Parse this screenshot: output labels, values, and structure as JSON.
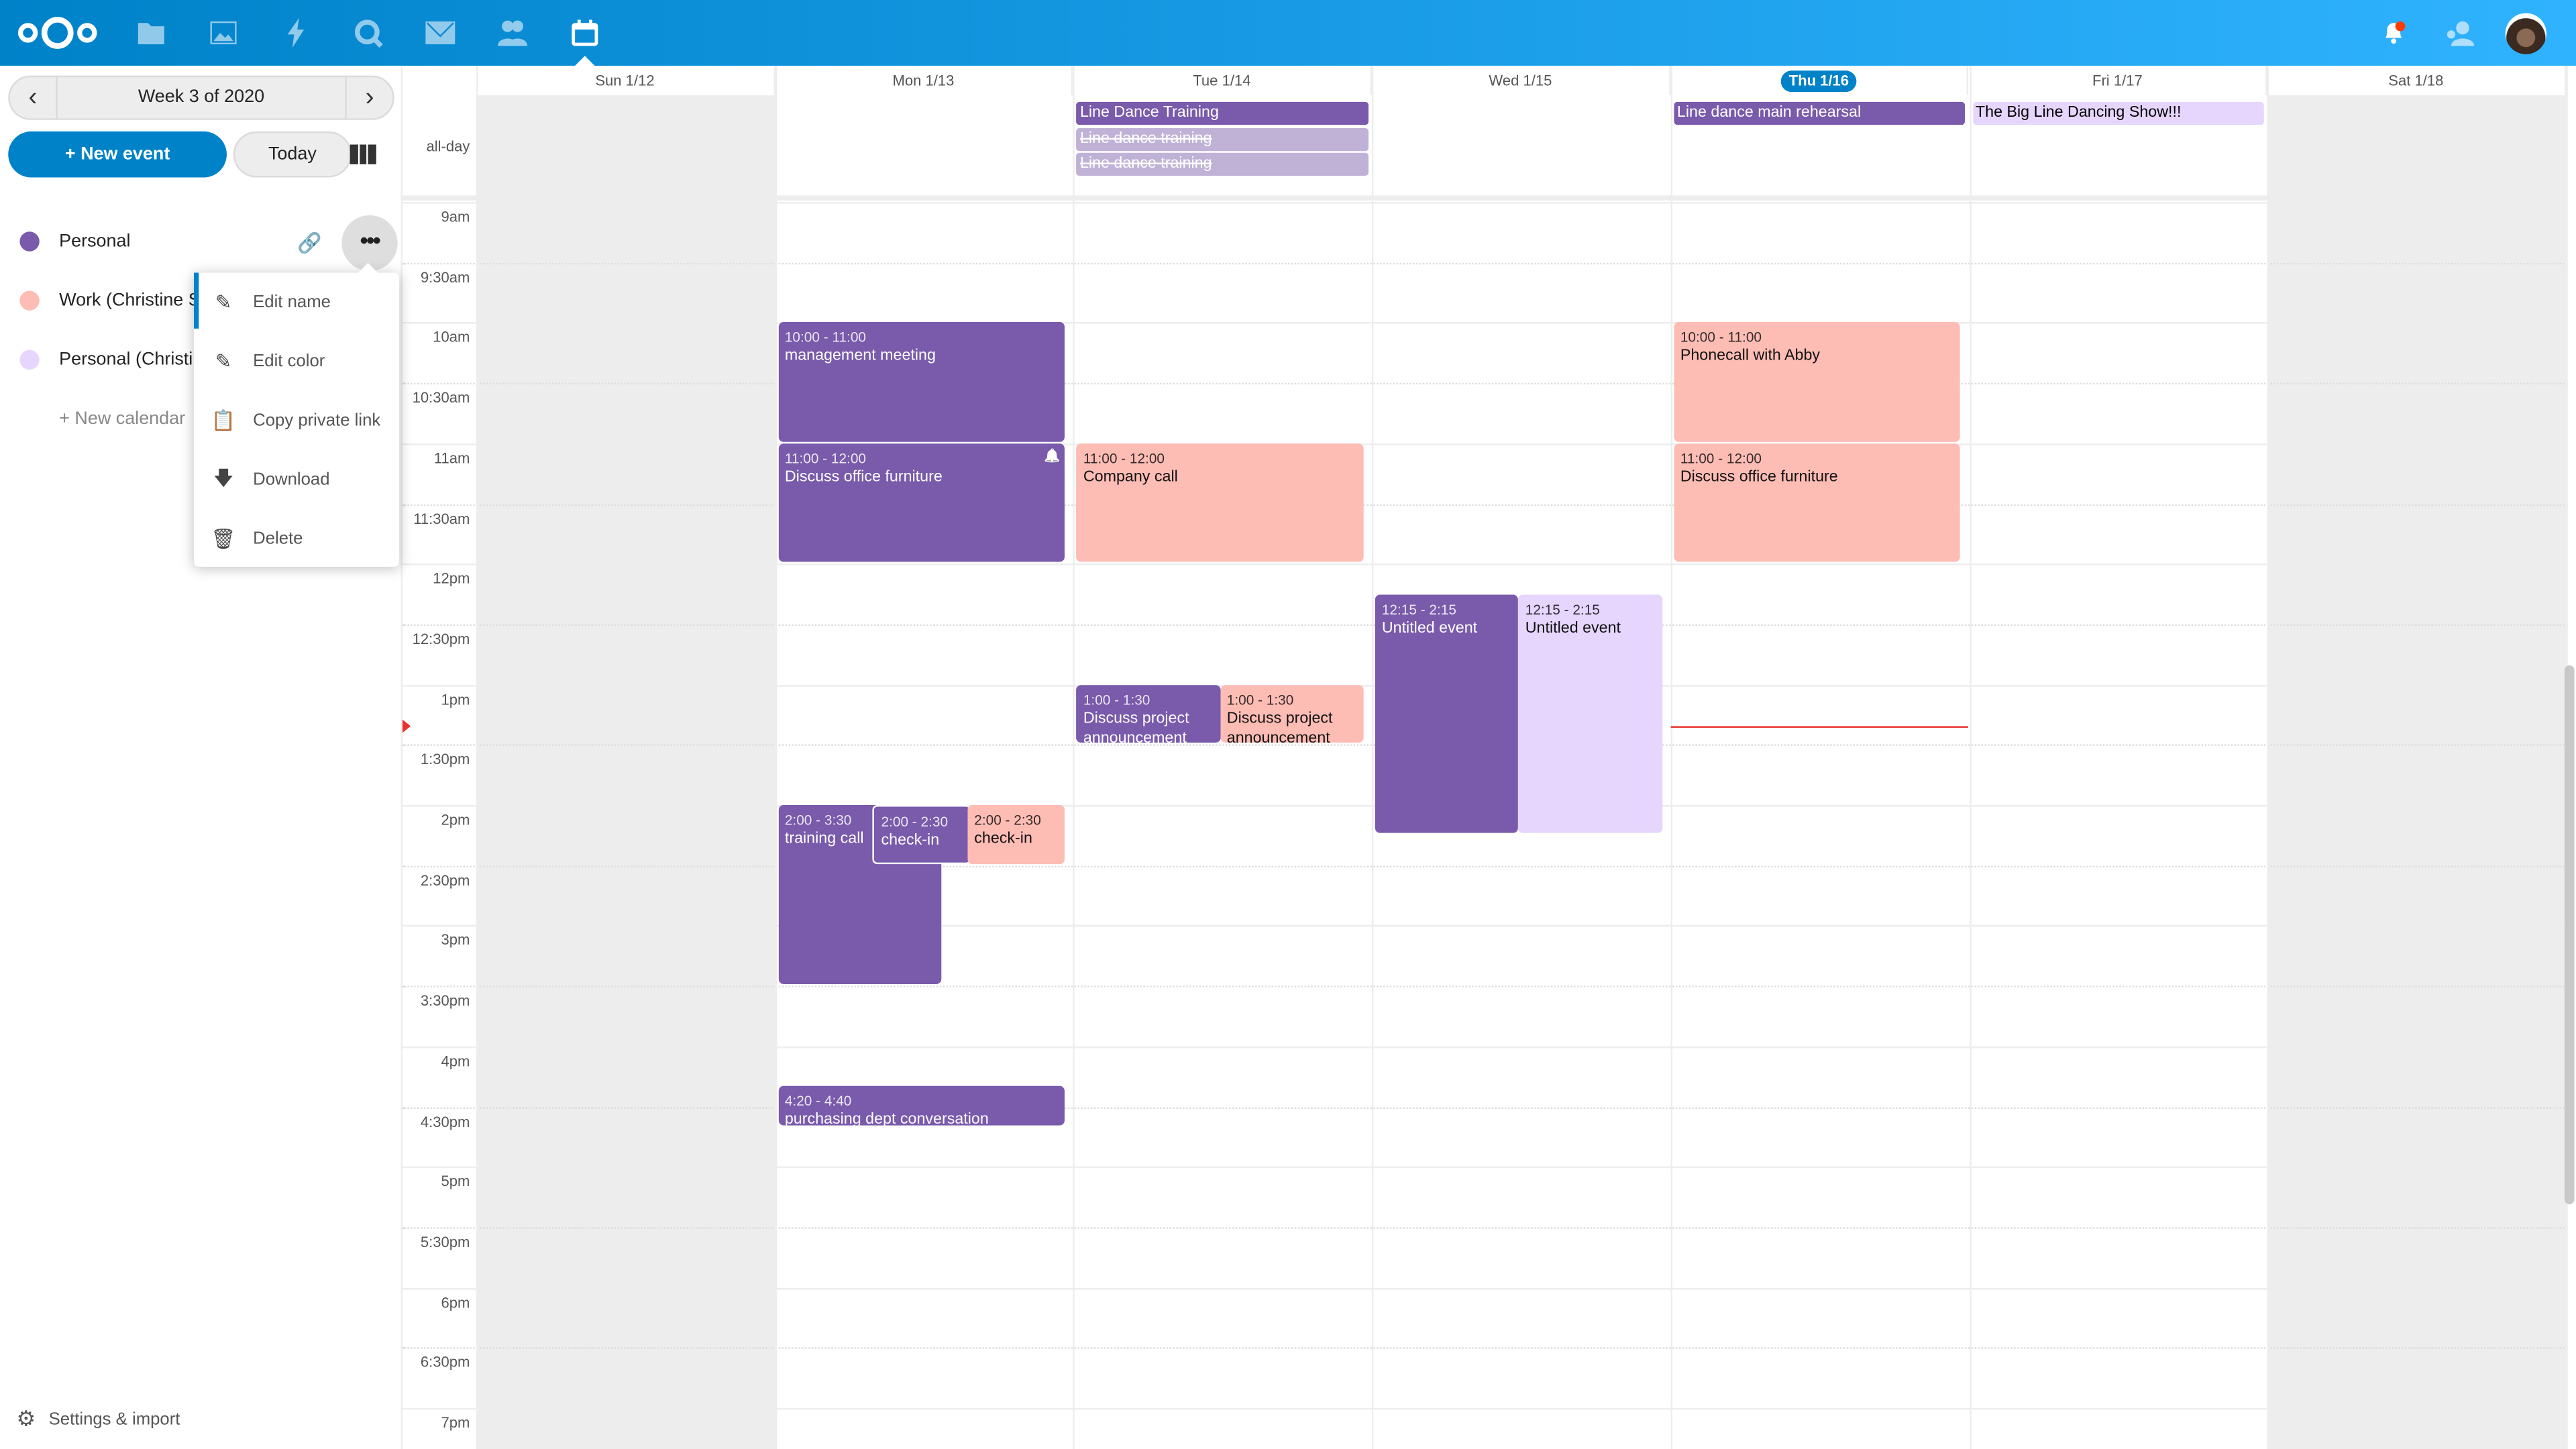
{
  "header": {
    "apps": [
      "files-icon",
      "photos-icon",
      "activity-icon",
      "talk-icon",
      "mail-icon",
      "contacts-icon",
      "calendar-icon"
    ],
    "right": [
      "notifications-icon",
      "contacts-menu-icon",
      "user-avatar"
    ],
    "notification_color": "#ff3b00"
  },
  "sidebar": {
    "week_label": "Week 3 of 2020",
    "new_event": "+ New event",
    "today": "Today",
    "calendars": [
      {
        "name": "Personal",
        "color": "#795aab"
      },
      {
        "name": "Work (Christine Schott)",
        "color": "#fdbcb4"
      },
      {
        "name": "Personal (Christine Schott)",
        "color": "#e6d6fe"
      }
    ],
    "new_calendar": "+ New calendar",
    "menu": [
      {
        "label": "Edit name",
        "icon": "pencil-icon"
      },
      {
        "label": "Edit color",
        "icon": "pencil-icon"
      },
      {
        "label": "Copy private link",
        "icon": "clipboard-icon"
      },
      {
        "label": "Download",
        "icon": "download-icon"
      },
      {
        "label": "Delete",
        "icon": "trash-icon"
      }
    ],
    "settings": "Settings & import"
  },
  "calendar": {
    "days": [
      "Sun 1/12",
      "Mon 1/13",
      "Tue 1/14",
      "Wed 1/15",
      "Thu 1/16",
      "Fri 1/17",
      "Sat 1/18"
    ],
    "today_index": 4,
    "allday_label": "all-day",
    "times": [
      "9am",
      "9:30am",
      "10am",
      "10:30am",
      "11am",
      "11:30am",
      "12pm",
      "12:30pm",
      "1pm",
      "1:30pm",
      "2pm",
      "2:30pm",
      "3pm",
      "3:30pm",
      "4pm",
      "4:30pm",
      "5pm",
      "5:30pm",
      "6pm",
      "6:30pm",
      "7pm"
    ],
    "now": "13:21",
    "colors": {
      "purple": "#795aab",
      "pink": "#fdbcb4",
      "lavender": "#e6d6fe",
      "faded": "#c0b2d6"
    },
    "allday": [
      {
        "day": 2,
        "title": "Line Dance Training",
        "color": "purple"
      },
      {
        "day": 2,
        "title": "Line dance training",
        "color": "faded",
        "declined": true
      },
      {
        "day": 2,
        "title": "Line dance training",
        "color": "faded",
        "declined": true
      },
      {
        "day": 4,
        "title": "Line dance main rehearsal",
        "color": "purple"
      },
      {
        "day": 5,
        "title": "The Big Line Dancing Show!!!",
        "color": "lavender"
      }
    ],
    "events": [
      {
        "day": 1,
        "start": "10:00",
        "end": "11:00",
        "time": "10:00 - 11:00",
        "title": "management meeting",
        "color": "purple"
      },
      {
        "day": 1,
        "start": "11:00",
        "end": "12:00",
        "time": "11:00 - 12:00",
        "title": "Discuss office furniture",
        "color": "purple",
        "alarm": true
      },
      {
        "day": 1,
        "start": "14:00",
        "end": "15:30",
        "time": "2:00 - 3:30",
        "title": "training call",
        "color": "purple"
      },
      {
        "day": 1,
        "start": "14:00",
        "end": "14:30",
        "time": "2:00 - 2:30",
        "title": "check-in",
        "color": "purple"
      },
      {
        "day": 1,
        "start": "14:00",
        "end": "14:30",
        "time": "2:00 - 2:30",
        "title": "check-in",
        "color": "pink"
      },
      {
        "day": 1,
        "start": "16:20",
        "end": "16:40",
        "time": "4:20 - 4:40",
        "title": "purchasing dept conversation",
        "color": "purple"
      },
      {
        "day": 2,
        "start": "11:00",
        "end": "12:00",
        "time": "11:00 - 12:00",
        "title": "Company call",
        "color": "pink"
      },
      {
        "day": 2,
        "start": "13:00",
        "end": "13:30",
        "time": "1:00 - 1:30",
        "title": "Discuss project announcement",
        "color": "purple"
      },
      {
        "day": 2,
        "start": "13:00",
        "end": "13:30",
        "time": "1:00 - 1:30",
        "title": "Discuss project announcement",
        "color": "pink"
      },
      {
        "day": 3,
        "start": "12:15",
        "end": "14:15",
        "time": "12:15 - 2:15",
        "title": "Untitled event",
        "color": "purple"
      },
      {
        "day": 3,
        "start": "12:15",
        "end": "14:15",
        "time": "12:15 - 2:15",
        "title": "Untitled event",
        "color": "lavender"
      },
      {
        "day": 4,
        "start": "10:00",
        "end": "11:00",
        "time": "10:00 - 11:00",
        "title": "Phonecall with Abby",
        "color": "pink"
      },
      {
        "day": 4,
        "start": "11:00",
        "end": "12:00",
        "time": "11:00 - 12:00",
        "title": "Discuss office furniture",
        "color": "pink"
      }
    ]
  }
}
